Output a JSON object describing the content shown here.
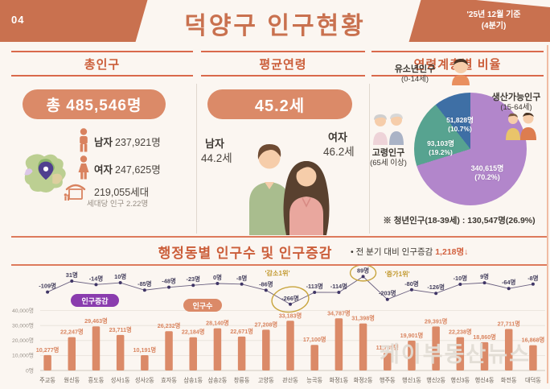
{
  "header": {
    "page_number": "04",
    "title": "덕양구 인구현황",
    "date_line1": "'25년 12월 기준",
    "date_line2": "(4분기)"
  },
  "colors": {
    "accent_orange": "#c9714f",
    "salmon": "#db8a68",
    "section_title_red": "#cb5d39",
    "legend_purple": "#8a3cae",
    "annotation_gold": "#c8a43c",
    "line_dark": "#3f3566",
    "pie_working": "#b286cb",
    "pie_elderly": "#57a390",
    "pie_youth": "#3e6fa5"
  },
  "total_population": {
    "section_title": "총인구",
    "badge": "총 485,546명",
    "male_label": "남자",
    "male_value": "237,921명",
    "female_label": "여자",
    "female_value": "247,625명",
    "households": "219,055세대",
    "per_household": "세대당 인구 2.22명"
  },
  "average_age": {
    "section_title": "평균연령",
    "badge": "45.2세",
    "male_label": "남자",
    "male_value": "44.2세",
    "female_label": "여자",
    "female_value": "46.2세"
  },
  "age_structure": {
    "section_title": "연령계층별 비율",
    "note": "※ 청년인구(18-39세) : 130,547명(26.9%)"
  },
  "district_chart": {
    "section_title": "행정동별 인구수 및 인구증감",
    "note_bullet": "•",
    "note_prefix": "전 분기 대비 인구증감 ",
    "note_value": "1,218명↓",
    "legend_change": "인구증감",
    "legend_population": "인구수"
  },
  "watermark": "케이부동산뉴스",
  "chart_data": [
    {
      "type": "pie",
      "title": "연령계층별 비율",
      "slices": [
        {
          "label": "생산가능인구",
          "age_range": "(15-64세)",
          "value": 340615,
          "pct": 70.2,
          "display": "340,615명",
          "pct_display": "(70.2%)",
          "color": "#b286cb"
        },
        {
          "label": "고령인구",
          "age_range": "(65세 이상)",
          "value": 93103,
          "pct": 19.2,
          "display": "93,103명",
          "pct_display": "(19.2%)",
          "color": "#57a390"
        },
        {
          "label": "유소년인구",
          "age_range": "(0-14세)",
          "value": 51828,
          "pct": 10.7,
          "display": "51,828명",
          "pct_display": "(10.7%)",
          "color": "#3e6fa5"
        }
      ],
      "footnote": "※ 청년인구(18-39세) : 130,547명(26.9%)"
    },
    {
      "type": "bar",
      "title": "행정동별 인구수 및 인구증감",
      "categories": [
        "주교동",
        "원신동",
        "흥도동",
        "성사1동",
        "성사2동",
        "효자동",
        "삼송1동",
        "삼송2동",
        "창릉동",
        "고양동",
        "관산동",
        "능곡동",
        "화정1동",
        "화정2동",
        "행주동",
        "행신1동",
        "행신2동",
        "행신3동",
        "행신4동",
        "화전동",
        "대덕동"
      ],
      "series": [
        {
          "name": "인구수",
          "type": "bar",
          "color": "#db8a68",
          "values": [
            10277,
            22247,
            29463,
            23711,
            10191,
            26232,
            22184,
            28140,
            22671,
            27208,
            33183,
            17100,
            34787,
            31398,
            11785,
            19901,
            29391,
            22238,
            18860,
            27711,
            16868
          ]
        },
        {
          "name": "인구증감",
          "type": "line",
          "color": "#3f3566",
          "values": [
            -109,
            31,
            -14,
            10,
            -85,
            -48,
            -23,
            0,
            -8,
            -86,
            -266,
            -113,
            -114,
            89,
            -203,
            -80,
            -126,
            -10,
            9,
            -64,
            -8
          ]
        }
      ],
      "unit": "명",
      "ylim": [
        0,
        40000
      ],
      "yticks": [
        "0명",
        "10,000명",
        "20,000명",
        "30,000명",
        "40,000명"
      ],
      "grid": true,
      "legend_position": "inside-top-left",
      "annotations": [
        {
          "text": "'감소1위'",
          "category": "관산동",
          "value": -266
        },
        {
          "text": "'증가1위'",
          "category": "화정2동",
          "value": 89
        }
      ],
      "total_change": "1,218명↓"
    }
  ]
}
